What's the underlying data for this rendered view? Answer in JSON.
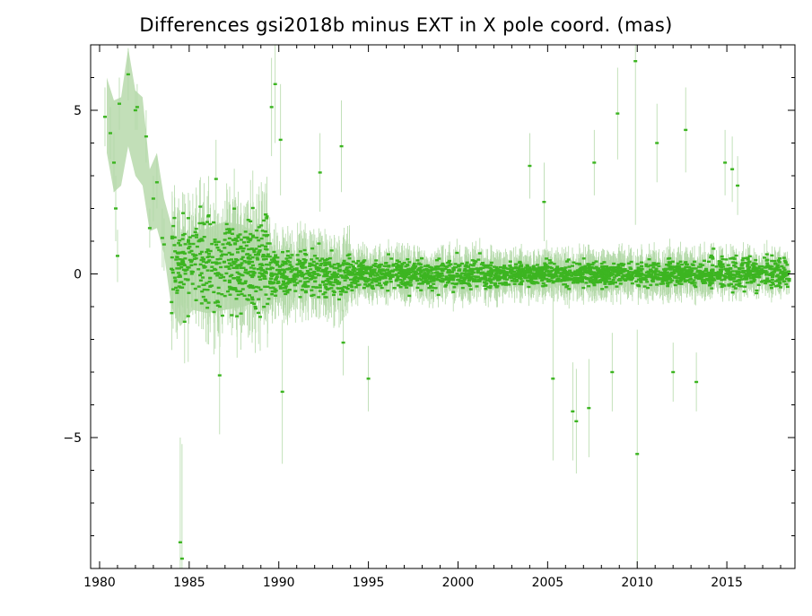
{
  "chart_data": {
    "type": "scatter",
    "title": "Differences gsi2018b minus EXT in X pole coord. (mas)",
    "xlabel": "",
    "ylabel": "",
    "xlim": [
      1979.5,
      2018.8
    ],
    "ylim": [
      -9.0,
      7.0
    ],
    "x_ticks": [
      1980,
      1985,
      1990,
      1995,
      2000,
      2005,
      2010,
      2015
    ],
    "y_ticks": [
      5,
      0,
      -5
    ],
    "y_tick_labels": [
      "5",
      "0",
      "−5"
    ],
    "grid": false,
    "legend": "none",
    "colors": {
      "points": "#3cb521",
      "error_bars": "#b3d9a8",
      "band": "#c2dfb8"
    },
    "uncertainty_band": [
      {
        "x": 1980.4,
        "lo": 3.7,
        "hi": 6.0
      },
      {
        "x": 1980.8,
        "lo": 2.5,
        "hi": 5.3
      },
      {
        "x": 1981.2,
        "lo": 2.7,
        "hi": 5.4
      },
      {
        "x": 1981.6,
        "lo": 3.9,
        "hi": 6.9
      },
      {
        "x": 1982.0,
        "lo": 3.0,
        "hi": 5.6
      },
      {
        "x": 1982.4,
        "lo": 2.7,
        "hi": 5.4
      },
      {
        "x": 1982.8,
        "lo": 1.3,
        "hi": 3.2
      },
      {
        "x": 1983.2,
        "lo": 1.4,
        "hi": 3.7
      },
      {
        "x": 1983.6,
        "lo": 0.6,
        "hi": 2.3
      },
      {
        "x": 1984.0,
        "lo": -1.0,
        "hi": 1.5
      },
      {
        "x": 1984.5,
        "lo": -1.6,
        "hi": 0.8
      },
      {
        "x": 1985.2,
        "lo": -1.1,
        "hi": 1.2
      },
      {
        "x": 1986.0,
        "lo": -1.2,
        "hi": 1.4
      },
      {
        "x": 1987.0,
        "lo": -1.1,
        "hi": 1.6
      },
      {
        "x": 1988.0,
        "lo": -1.0,
        "hi": 1.5
      },
      {
        "x": 1989.0,
        "lo": -0.8,
        "hi": 1.0
      }
    ],
    "outlier_points": [
      {
        "x": 1980.3,
        "y": 4.8,
        "err": 0.9
      },
      {
        "x": 1980.6,
        "y": 4.3,
        "err": 0.8
      },
      {
        "x": 1980.8,
        "y": 3.4,
        "err": 0.9
      },
      {
        "x": 1980.9,
        "y": 2.0,
        "err": 1.0
      },
      {
        "x": 1981.0,
        "y": 0.55,
        "err": 0.8
      },
      {
        "x": 1981.1,
        "y": 5.2,
        "err": 0.8
      },
      {
        "x": 1981.6,
        "y": 6.1,
        "err": 0.8
      },
      {
        "x": 1982.0,
        "y": 5.0,
        "err": 0.6
      },
      {
        "x": 1982.1,
        "y": 5.1,
        "err": 0.7
      },
      {
        "x": 1982.6,
        "y": 4.2,
        "err": 0.8
      },
      {
        "x": 1982.8,
        "y": 1.4,
        "err": 0.6
      },
      {
        "x": 1983.0,
        "y": 2.3,
        "err": 0.7
      },
      {
        "x": 1983.2,
        "y": 2.8,
        "err": 0.8
      },
      {
        "x": 1983.5,
        "y": 1.1,
        "err": 0.9
      },
      {
        "x": 1983.6,
        "y": 0.9,
        "err": 0.8
      },
      {
        "x": 1984.5,
        "y": -8.2,
        "err": 3.2
      },
      {
        "x": 1984.6,
        "y": -8.7,
        "err": 3.5
      },
      {
        "x": 1986.7,
        "y": -3.1,
        "err": 1.8
      },
      {
        "x": 1986.5,
        "y": 2.9,
        "err": 1.2
      },
      {
        "x": 1989.6,
        "y": 5.1,
        "err": 1.5
      },
      {
        "x": 1989.8,
        "y": 5.8,
        "err": 1.8
      },
      {
        "x": 1990.1,
        "y": 4.1,
        "err": 1.7
      },
      {
        "x": 1990.2,
        "y": -3.6,
        "err": 2.2
      },
      {
        "x": 1992.3,
        "y": 3.1,
        "err": 1.2
      },
      {
        "x": 1993.5,
        "y": 3.9,
        "err": 1.4
      },
      {
        "x": 1993.6,
        "y": -2.1,
        "err": 1.0
      },
      {
        "x": 1995.0,
        "y": -3.2,
        "err": 1.0
      },
      {
        "x": 2004.0,
        "y": 3.3,
        "err": 1.0
      },
      {
        "x": 2004.8,
        "y": 2.2,
        "err": 1.2
      },
      {
        "x": 2005.3,
        "y": -3.2,
        "err": 2.5
      },
      {
        "x": 2006.4,
        "y": -4.2,
        "err": 1.5
      },
      {
        "x": 2006.6,
        "y": -4.5,
        "err": 1.6
      },
      {
        "x": 2007.3,
        "y": -4.1,
        "err": 1.5
      },
      {
        "x": 2007.6,
        "y": 3.4,
        "err": 1.0
      },
      {
        "x": 2008.6,
        "y": -3.0,
        "err": 1.2
      },
      {
        "x": 2008.9,
        "y": 4.9,
        "err": 1.4
      },
      {
        "x": 2009.9,
        "y": 6.5,
        "err": 5.0
      },
      {
        "x": 2010.0,
        "y": -5.5,
        "err": 3.8
      },
      {
        "x": 2011.1,
        "y": 4.0,
        "err": 1.2
      },
      {
        "x": 2012.0,
        "y": -3.0,
        "err": 0.9
      },
      {
        "x": 2012.7,
        "y": 4.4,
        "err": 1.3
      },
      {
        "x": 2013.3,
        "y": -3.3,
        "err": 0.9
      },
      {
        "x": 2014.9,
        "y": 3.4,
        "err": 1.0
      },
      {
        "x": 2015.3,
        "y": 3.2,
        "err": 1.0
      },
      {
        "x": 2015.6,
        "y": 2.7,
        "err": 0.9
      }
    ],
    "series": [
      {
        "points_description_by_period": [
          {
            "from": 1984.0,
            "to": 1989.5,
            "mean": 0.3,
            "spread": 1.0,
            "err": 1.1
          },
          {
            "from": 1989.5,
            "to": 1994.0,
            "mean": 0.0,
            "spread": 0.45,
            "err": 0.8
          },
          {
            "from": 1994.0,
            "to": 2002.0,
            "mean": 0.0,
            "spread": 0.3,
            "err": 0.5
          },
          {
            "from": 2002.0,
            "to": 2014.0,
            "mean": 0.0,
            "spread": 0.25,
            "err": 0.5
          },
          {
            "from": 2014.0,
            "to": 2018.5,
            "mean": 0.05,
            "spread": 0.35,
            "err": 0.4
          }
        ]
      }
    ]
  }
}
